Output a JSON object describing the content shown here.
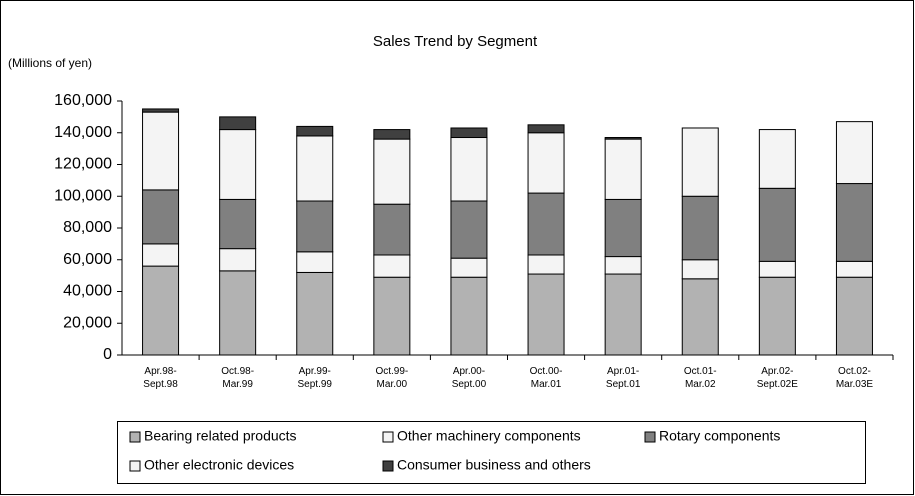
{
  "chart_data": {
    "type": "stacked_bar",
    "title": "Sales Trend by Segment",
    "y_label": "(Millions of yen)",
    "categories": [
      "Apr.98-\nSept.98",
      "Oct.98-\nMar.99",
      "Apr.99-\nSept.99",
      "Oct.99-\nMar.00",
      "Apr.00-\nSept.00",
      "Oct.00-\nMar.01",
      "Apr.01-\nSept.01",
      "Oct.01-\nMar.02",
      "Apr.02-\nSept.02E",
      "Oct.02-\nMar.03E"
    ],
    "series": [
      {
        "name": "Bearing related products",
        "color": "#b2b2b2",
        "values": [
          56000,
          53000,
          52000,
          49000,
          49000,
          51000,
          51000,
          48000,
          49000,
          49000
        ]
      },
      {
        "name": "Other machinery components",
        "color": "#f4f4f4",
        "values": [
          14000,
          14000,
          13000,
          14000,
          12000,
          12000,
          11000,
          12000,
          10000,
          10000
        ]
      },
      {
        "name": "Rotary components",
        "color": "#808080",
        "values": [
          34000,
          31000,
          32000,
          32000,
          36000,
          39000,
          36000,
          40000,
          46000,
          49000
        ]
      },
      {
        "name": "Other electronic devices",
        "color": "#f4f4f4",
        "values": [
          49000,
          44000,
          41000,
          41000,
          40000,
          38000,
          38000,
          43000,
          37000,
          39000
        ]
      },
      {
        "name": "Consumer business and others",
        "color": "#404040",
        "values": [
          2000,
          8000,
          6000,
          6000,
          6000,
          5000,
          1000,
          0,
          0,
          0
        ]
      }
    ],
    "ylim": [
      0,
      160000
    ],
    "yticks": [
      0,
      {
        "value": 20000,
        "label": "20,000"
      },
      {
        "value": 40000,
        "label": "40,000"
      },
      {
        "value": 60000,
        "label": "60,000"
      },
      {
        "value": 80000,
        "label": "80,000"
      },
      {
        "value": 100000,
        "label": "100,000"
      },
      {
        "value": 120000,
        "label": "120,000"
      },
      {
        "value": 140000,
        "label": "140,000"
      },
      {
        "value": 160000,
        "label": "160,000"
      }
    ],
    "grid": false,
    "legend": "bottom"
  }
}
